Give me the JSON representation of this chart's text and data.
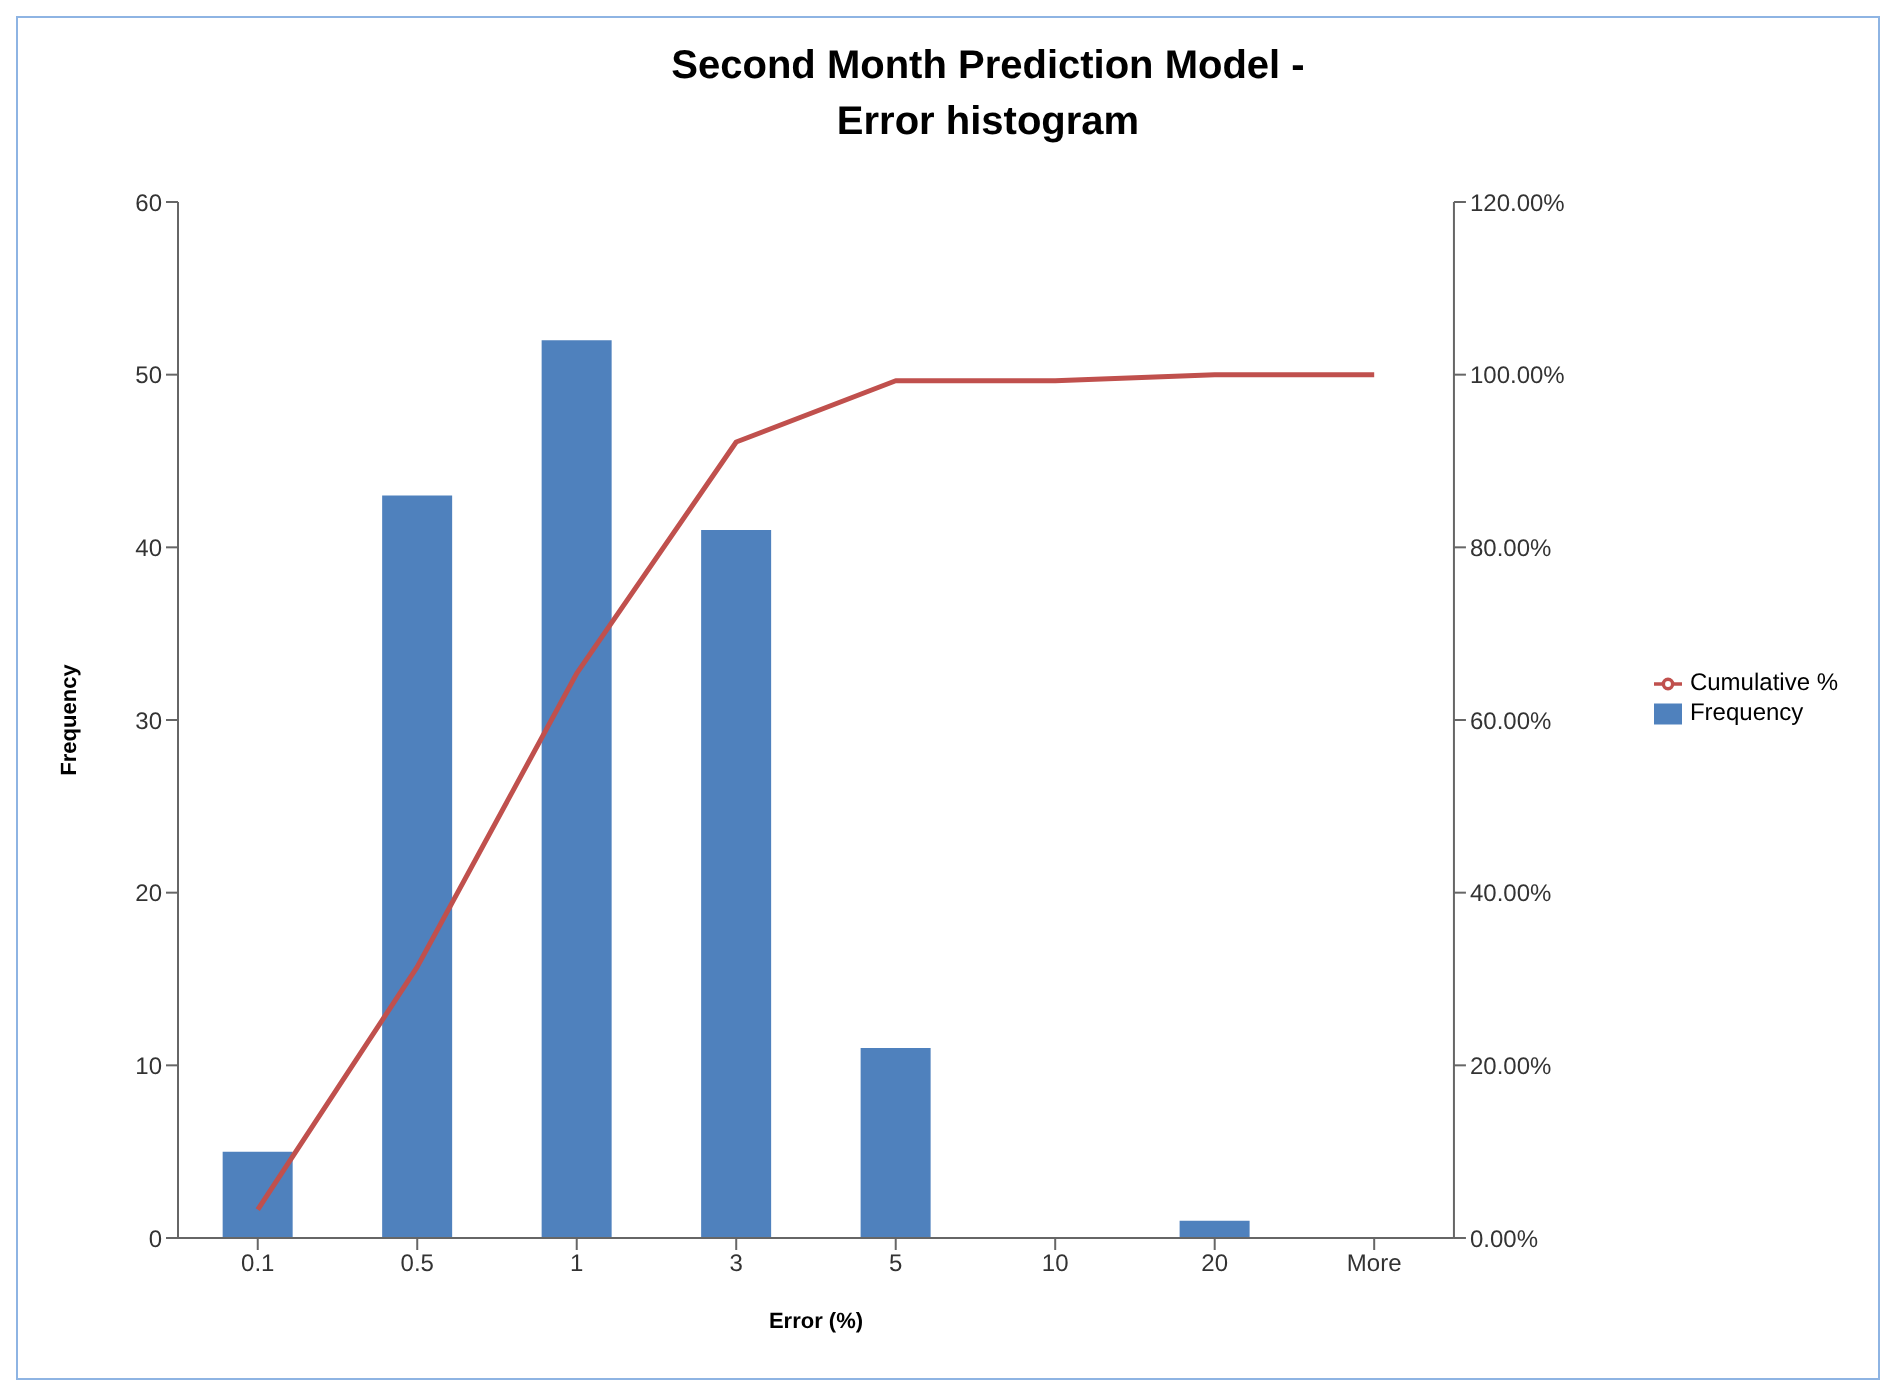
{
  "chart_data": {
    "type": "bar",
    "title": "Second Month Prediction Model -\nError histogram",
    "xlabel": "Error (%)",
    "ylabel": "Frequency",
    "categories": [
      "0.1",
      "0.5",
      "1",
      "3",
      "5",
      "10",
      "20",
      "More"
    ],
    "series": [
      {
        "name": "Frequency",
        "color": "#4f81bd",
        "values": [
          5,
          43,
          52,
          41,
          11,
          0,
          1,
          0
        ]
      },
      {
        "name": "Cumulative %",
        "type": "line",
        "axis": "y2",
        "color": "#c0504d",
        "marker": "none",
        "values": [
          3.3,
          31.4,
          65.4,
          92.2,
          99.3,
          99.3,
          100,
          100
        ]
      }
    ],
    "ylim": [
      0,
      60
    ],
    "yticks": [
      0,
      10,
      20,
      30,
      40,
      50,
      60
    ],
    "y2lim": [
      0,
      120
    ],
    "y2ticks": [
      {
        "value": 0,
        "label": "0.00%"
      },
      {
        "value": 20,
        "label": "20.00%"
      },
      {
        "value": 40,
        "label": "40.00%"
      },
      {
        "value": 60,
        "label": "60.00%"
      },
      {
        "value": 80,
        "label": "80.00%"
      },
      {
        "value": 100,
        "label": "100.00%"
      },
      {
        "value": 120,
        "label": "120.00%"
      }
    ],
    "grid": false,
    "legend": "right"
  }
}
